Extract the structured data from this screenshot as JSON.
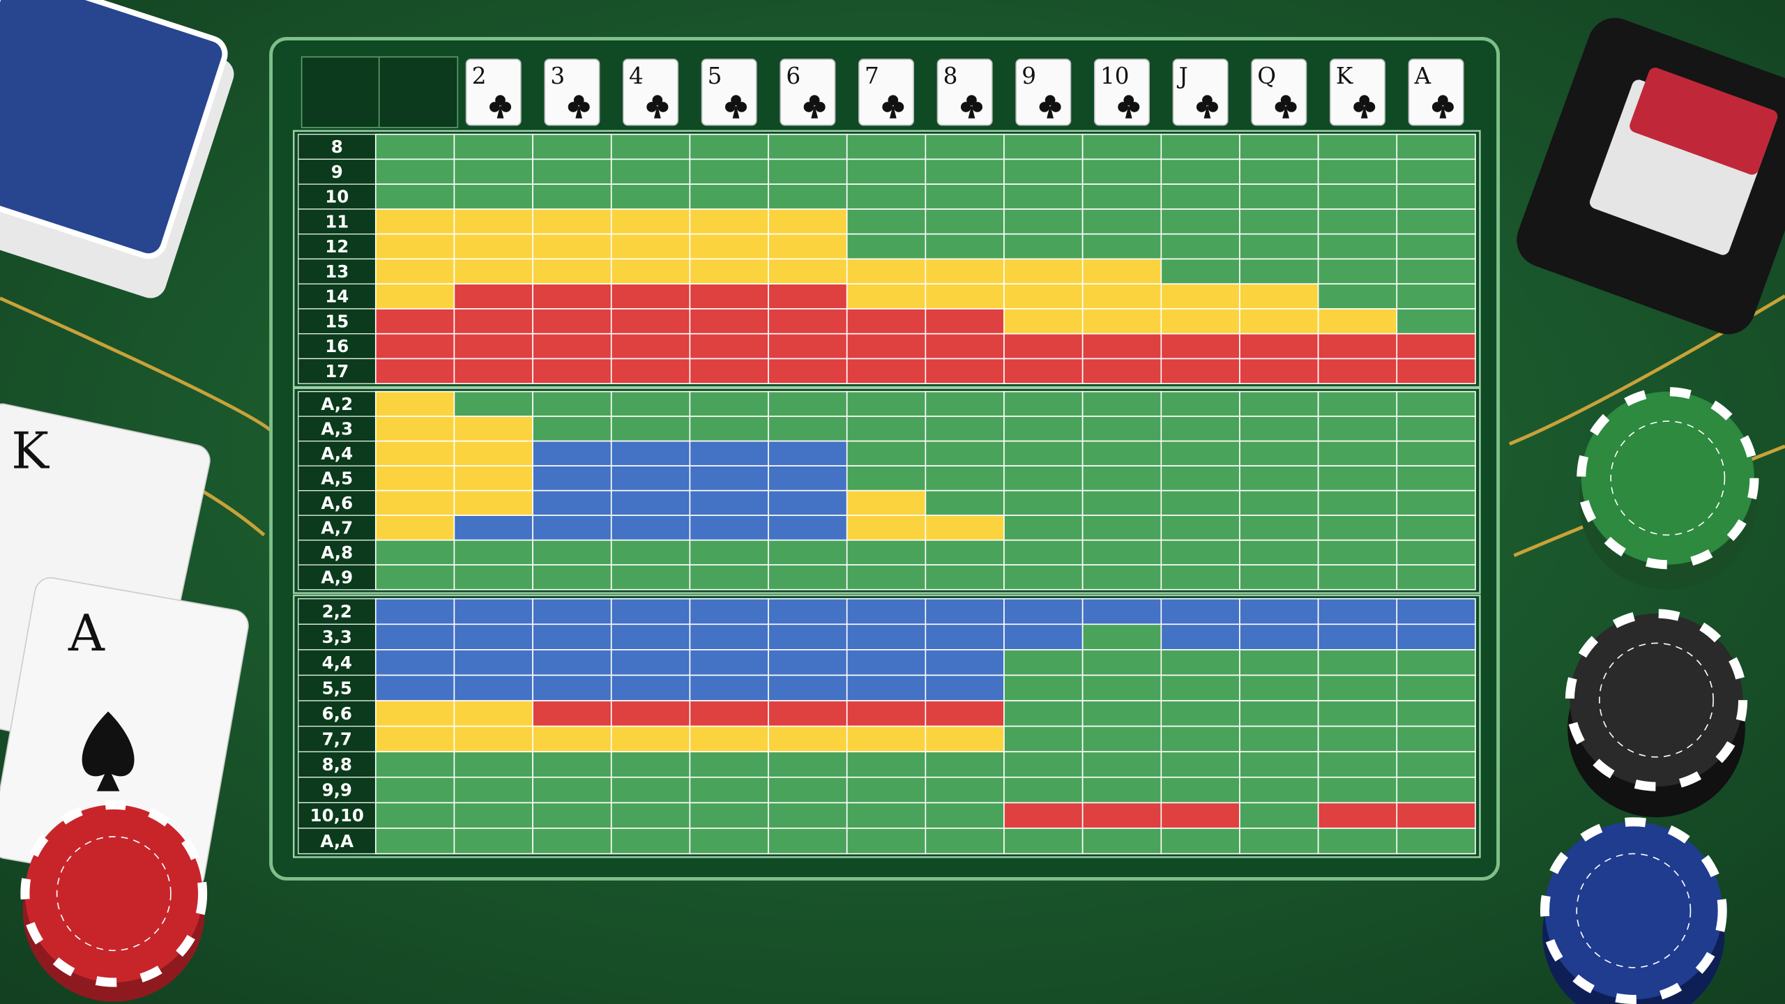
{
  "header": {
    "columns": [
      null,
      "2",
      "3",
      "4",
      "5",
      "6",
      "7",
      "8",
      "9",
      "10",
      "J",
      "Q",
      "K",
      "A"
    ]
  },
  "sections": [
    {
      "rows": [
        {
          "label": "8",
          "cells": [
            "#4aa35a",
            "#4aa35a",
            "#4aa35a",
            "#4aa35a",
            "#4aa35a",
            "#4aa35a",
            "#4aa35a",
            "#4aa35a",
            "#4aa35a",
            "#4aa35a",
            "#4aa35a",
            "#4aa35a",
            "#4aa35a",
            "#4aa35a"
          ]
        },
        {
          "label": "9",
          "cells": [
            "#4aa35a",
            "#4aa35a",
            "#4aa35a",
            "#4aa35a",
            "#4aa35a",
            "#4aa35a",
            "#4aa35a",
            "#4aa35a",
            "#4aa35a",
            "#4aa35a",
            "#4aa35a",
            "#4aa35a",
            "#4aa35a",
            "#4aa35a"
          ]
        },
        {
          "label": "10",
          "cells": [
            "#4aa35a",
            "#4aa35a",
            "#4aa35a",
            "#4aa35a",
            "#4aa35a",
            "#4aa35a",
            "#4aa35a",
            "#4aa35a",
            "#4aa35a",
            "#4aa35a",
            "#4aa35a",
            "#4aa35a",
            "#4aa35a",
            "#4aa35a"
          ]
        },
        {
          "label": "11",
          "cells": [
            "#fbd33f",
            "#fbd33f",
            "#fbd33f",
            "#fbd33f",
            "#fbd33f",
            "#fbd33f",
            "#4aa35a",
            "#4aa35a",
            "#4aa35a",
            "#4aa35a",
            "#4aa35a",
            "#4aa35a",
            "#4aa35a",
            "#4aa35a"
          ]
        },
        {
          "label": "12",
          "cells": [
            "#fbd33f",
            "#fbd33f",
            "#fbd33f",
            "#fbd33f",
            "#fbd33f",
            "#fbd33f",
            "#4aa35a",
            "#4aa35a",
            "#4aa35a",
            "#4aa35a",
            "#4aa35a",
            "#4aa35a",
            "#4aa35a",
            "#4aa35a"
          ]
        },
        {
          "label": "13",
          "cells": [
            "#fbd33f",
            "#fbd33f",
            "#fbd33f",
            "#fbd33f",
            "#fbd33f",
            "#fbd33f",
            "#fbd33f",
            "#fbd33f",
            "#fbd33f",
            "#fbd33f",
            "#4aa35a",
            "#4aa35a",
            "#4aa35a",
            "#4aa35a"
          ]
        },
        {
          "label": "14",
          "cells": [
            "#fbd33f",
            "#df4040",
            "#df4040",
            "#df4040",
            "#df4040",
            "#df4040",
            "#fbd33f",
            "#fbd33f",
            "#fbd33f",
            "#fbd33f",
            "#fbd33f",
            "#fbd33f",
            "#4aa35a",
            "#4aa35a"
          ]
        },
        {
          "label": "15",
          "cells": [
            "#df4040",
            "#df4040",
            "#df4040",
            "#df4040",
            "#df4040",
            "#df4040",
            "#df4040",
            "#df4040",
            "#fbd33f",
            "#fbd33f",
            "#fbd33f",
            "#fbd33f",
            "#fbd33f",
            "#4aa35a"
          ]
        },
        {
          "label": "16",
          "cells": [
            "#df4040",
            "#df4040",
            "#df4040",
            "#df4040",
            "#df4040",
            "#df4040",
            "#df4040",
            "#df4040",
            "#df4040",
            "#df4040",
            "#df4040",
            "#df4040",
            "#df4040",
            "#df4040"
          ]
        },
        {
          "label": "17",
          "cells": [
            "#df4040",
            "#df4040",
            "#df4040",
            "#df4040",
            "#df4040",
            "#df4040",
            "#df4040",
            "#df4040",
            "#df4040",
            "#df4040",
            "#df4040",
            "#df4040",
            "#df4040",
            "#df4040"
          ]
        }
      ]
    },
    {
      "rows": [
        {
          "label": "A,2",
          "cells": [
            "#fbd33f",
            "#4aa35a",
            "#4aa35a",
            "#4aa35a",
            "#4aa35a",
            "#4aa35a",
            "#4aa35a",
            "#4aa35a",
            "#4aa35a",
            "#4aa35a",
            "#4aa35a",
            "#4aa35a",
            "#4aa35a",
            "#4aa35a"
          ]
        },
        {
          "label": "A,3",
          "cells": [
            "#fbd33f",
            "#fbd33f",
            "#4aa35a",
            "#4aa35a",
            "#4aa35a",
            "#4aa35a",
            "#4aa35a",
            "#4aa35a",
            "#4aa35a",
            "#4aa35a",
            "#4aa35a",
            "#4aa35a",
            "#4aa35a",
            "#4aa35a"
          ]
        },
        {
          "label": "A,4",
          "cells": [
            "#fbd33f",
            "#fbd33f",
            "#4472c4",
            "#4472c4",
            "#4472c4",
            "#4472c4",
            "#4aa35a",
            "#4aa35a",
            "#4aa35a",
            "#4aa35a",
            "#4aa35a",
            "#4aa35a",
            "#4aa35a",
            "#4aa35a"
          ]
        },
        {
          "label": "A,5",
          "cells": [
            "#fbd33f",
            "#fbd33f",
            "#4472c4",
            "#4472c4",
            "#4472c4",
            "#4472c4",
            "#4aa35a",
            "#4aa35a",
            "#4aa35a",
            "#4aa35a",
            "#4aa35a",
            "#4aa35a",
            "#4aa35a",
            "#4aa35a"
          ]
        },
        {
          "label": "A,6",
          "cells": [
            "#fbd33f",
            "#fbd33f",
            "#4472c4",
            "#4472c4",
            "#4472c4",
            "#4472c4",
            "#fbd33f",
            "#4aa35a",
            "#4aa35a",
            "#4aa35a",
            "#4aa35a",
            "#4aa35a",
            "#4aa35a",
            "#4aa35a"
          ]
        },
        {
          "label": "A,7",
          "cells": [
            "#fbd33f",
            "#4472c4",
            "#4472c4",
            "#4472c4",
            "#4472c4",
            "#4472c4",
            "#fbd33f",
            "#fbd33f",
            "#4aa35a",
            "#4aa35a",
            "#4aa35a",
            "#4aa35a",
            "#4aa35a",
            "#4aa35a"
          ]
        },
        {
          "label": "A,8",
          "cells": [
            "#4aa35a",
            "#4aa35a",
            "#4aa35a",
            "#4aa35a",
            "#4aa35a",
            "#4aa35a",
            "#4aa35a",
            "#4aa35a",
            "#4aa35a",
            "#4aa35a",
            "#4aa35a",
            "#4aa35a",
            "#4aa35a",
            "#4aa35a"
          ]
        },
        {
          "label": "A,9",
          "cells": [
            "#4aa35a",
            "#4aa35a",
            "#4aa35a",
            "#4aa35a",
            "#4aa35a",
            "#4aa35a",
            "#4aa35a",
            "#4aa35a",
            "#4aa35a",
            "#4aa35a",
            "#4aa35a",
            "#4aa35a",
            "#4aa35a",
            "#4aa35a"
          ]
        }
      ]
    },
    {
      "rows": [
        {
          "label": "2,2",
          "cells": [
            "#4472c4",
            "#4472c4",
            "#4472c4",
            "#4472c4",
            "#4472c4",
            "#4472c4",
            "#4472c4",
            "#4472c4",
            "#4472c4",
            "#4472c4",
            "#4472c4",
            "#4472c4",
            "#4472c4",
            "#4472c4"
          ]
        },
        {
          "label": "3,3",
          "cells": [
            "#4472c4",
            "#4472c4",
            "#4472c4",
            "#4472c4",
            "#4472c4",
            "#4472c4",
            "#4472c4",
            "#4472c4",
            "#4472c4",
            "#4aa35a",
            "#4472c4",
            "#4472c4",
            "#4472c4",
            "#4472c4"
          ]
        },
        {
          "label": "4,4",
          "cells": [
            "#4472c4",
            "#4472c4",
            "#4472c4",
            "#4472c4",
            "#4472c4",
            "#4472c4",
            "#4472c4",
            "#4472c4",
            "#4aa35a",
            "#4aa35a",
            "#4aa35a",
            "#4aa35a",
            "#4aa35a",
            "#4aa35a"
          ]
        },
        {
          "label": "5,5",
          "cells": [
            "#4472c4",
            "#4472c4",
            "#4472c4",
            "#4472c4",
            "#4472c4",
            "#4472c4",
            "#4472c4",
            "#4472c4",
            "#4aa35a",
            "#4aa35a",
            "#4aa35a",
            "#4aa35a",
            "#4aa35a",
            "#4aa35a"
          ]
        },
        {
          "label": "6,6",
          "cells": [
            "#fbd33f",
            "#fbd33f",
            "#df4040",
            "#df4040",
            "#df4040",
            "#df4040",
            "#df4040",
            "#df4040",
            "#4aa35a",
            "#4aa35a",
            "#4aa35a",
            "#4aa35a",
            "#4aa35a",
            "#4aa35a"
          ]
        },
        {
          "label": "7,7",
          "cells": [
            "#fbd33f",
            "#fbd33f",
            "#fbd33f",
            "#fbd33f",
            "#fbd33f",
            "#fbd33f",
            "#fbd33f",
            "#fbd33f",
            "#4aa35a",
            "#4aa35a",
            "#4aa35a",
            "#4aa35a",
            "#4aa35a",
            "#4aa35a"
          ]
        },
        {
          "label": "8,8",
          "cells": [
            "#4aa35a",
            "#4aa35a",
            "#4aa35a",
            "#4aa35a",
            "#4aa35a",
            "#4aa35a",
            "#4aa35a",
            "#4aa35a",
            "#4aa35a",
            "#4aa35a",
            "#4aa35a",
            "#4aa35a",
            "#4aa35a",
            "#4aa35a"
          ]
        },
        {
          "label": "9,9",
          "cells": [
            "#4aa35a",
            "#4aa35a",
            "#4aa35a",
            "#4aa35a",
            "#4aa35a",
            "#4aa35a",
            "#4aa35a",
            "#4aa35a",
            "#4aa35a",
            "#4aa35a",
            "#4aa35a",
            "#4aa35a",
            "#4aa35a",
            "#4aa35a"
          ]
        },
        {
          "label": "10,10",
          "cells": [
            "#4aa35a",
            "#4aa35a",
            "#4aa35a",
            "#4aa35a",
            "#4aa35a",
            "#4aa35a",
            "#4aa35a",
            "#4aa35a",
            "#df4040",
            "#df4040",
            "#df4040",
            "#4aa35a",
            "#df4040",
            "#df4040"
          ]
        },
        {
          "label": "A,A",
          "cells": [
            "#4aa35a",
            "#4aa35a",
            "#4aa35a",
            "#4aa35a",
            "#4aa35a",
            "#4aa35a",
            "#4aa35a",
            "#4aa35a",
            "#4aa35a",
            "#4aa35a",
            "#4aa35a",
            "#4aa35a",
            "#4aa35a",
            "#4aa35a"
          ]
        }
      ]
    }
  ],
  "table_cards": [
    "K",
    "A"
  ]
}
